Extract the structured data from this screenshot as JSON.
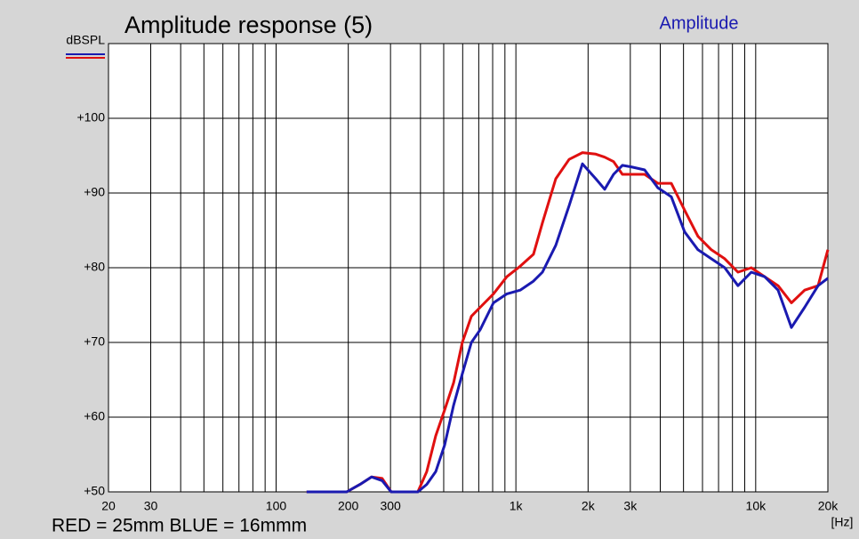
{
  "chart_data": {
    "type": "line",
    "title": "Amplitude response (5)",
    "legend_title": "Amplitude",
    "ylabel": "dBSPL",
    "xlabel": "[Hz]",
    "footer": "RED = 25mm  BLUE = 16mmm",
    "xscale": "log",
    "grid": true,
    "xlim": [
      20,
      20000
    ],
    "ylim": [
      50,
      110
    ],
    "xticks": [
      20,
      30,
      100,
      200,
      300,
      {
        "value": 1000,
        "label": "1k"
      },
      {
        "value": 2000,
        "label": "2k"
      },
      {
        "value": 3000,
        "label": "3k"
      },
      {
        "value": 10000,
        "label": "10k"
      },
      {
        "value": 20000,
        "label": "20k"
      }
    ],
    "xminorticks": [
      40,
      50,
      60,
      70,
      80,
      90,
      400,
      500,
      600,
      700,
      800,
      900,
      4000,
      5000,
      6000,
      7000,
      8000,
      9000
    ],
    "yticks": [
      {
        "value": 50,
        "label": "+50"
      },
      {
        "value": 60,
        "label": "+60"
      },
      {
        "value": 70,
        "label": "+70"
      },
      {
        "value": 80,
        "label": "+80"
      },
      {
        "value": 90,
        "label": "+90"
      },
      {
        "value": 100,
        "label": "+100"
      }
    ],
    "x": [
      134,
      197,
      224,
      250,
      277,
      302,
      390,
      425,
      463,
      505,
      550,
      598,
      652,
      710,
      806,
      917,
      1042,
      1184,
      1290,
      1466,
      1667,
      1894,
      2153,
      2345,
      2554,
      2781,
      3028,
      3442,
      3910,
      4446,
      5054,
      5744,
      6532,
      7430,
      8434,
      9592,
      10900,
      12400,
      14090,
      16000,
      18200,
      20000
    ],
    "series": [
      {
        "color": "#e01010",
        "values": [
          50,
          50,
          51,
          52,
          51.8,
          50,
          50,
          52.7,
          57.5,
          61,
          64.6,
          70,
          73.5,
          74.7,
          76.5,
          78.8,
          80.2,
          81.8,
          86,
          91.9,
          94.5,
          95.4,
          95.2,
          94.8,
          94.2,
          92.5,
          92.5,
          92.5,
          91.3,
          91.3,
          87.7,
          84.2,
          82.4,
          81.2,
          79.4,
          80,
          78.8,
          77.6,
          75.3,
          77,
          77.6,
          82.4
        ]
      },
      {
        "color": "#1a1ab0",
        "values": [
          50,
          50,
          51,
          52,
          51.5,
          50,
          50,
          51,
          52.7,
          56.3,
          61.6,
          65.8,
          70,
          71.7,
          75.3,
          76.5,
          77,
          78.2,
          79.4,
          83,
          88.3,
          93.9,
          91.9,
          90.5,
          92.5,
          93.7,
          93.5,
          93.1,
          90.7,
          89.5,
          84.8,
          82.4,
          81.2,
          80,
          77.6,
          79.4,
          78.8,
          77,
          72,
          74.7,
          77.6,
          78.6
        ]
      }
    ]
  }
}
